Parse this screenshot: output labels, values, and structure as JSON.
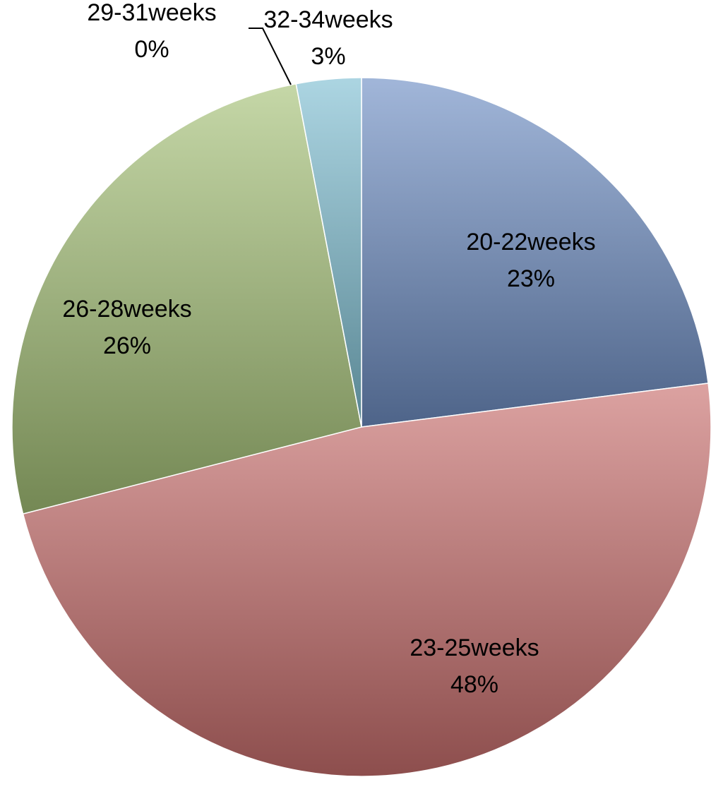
{
  "chart_data": {
    "type": "pie",
    "categories": [
      "20-22weeks",
      "23-25weeks",
      "26-28weeks",
      "29-31weeks",
      "32-34weeks"
    ],
    "values": [
      23,
      48,
      26,
      0,
      3
    ],
    "value_labels": [
      "23%",
      "48%",
      "26%",
      "0%",
      "3%"
    ],
    "colors": [
      "#6f8fc4",
      "#c9706e",
      "#a5c278",
      "#8064a2",
      "#7fbfd2"
    ]
  }
}
